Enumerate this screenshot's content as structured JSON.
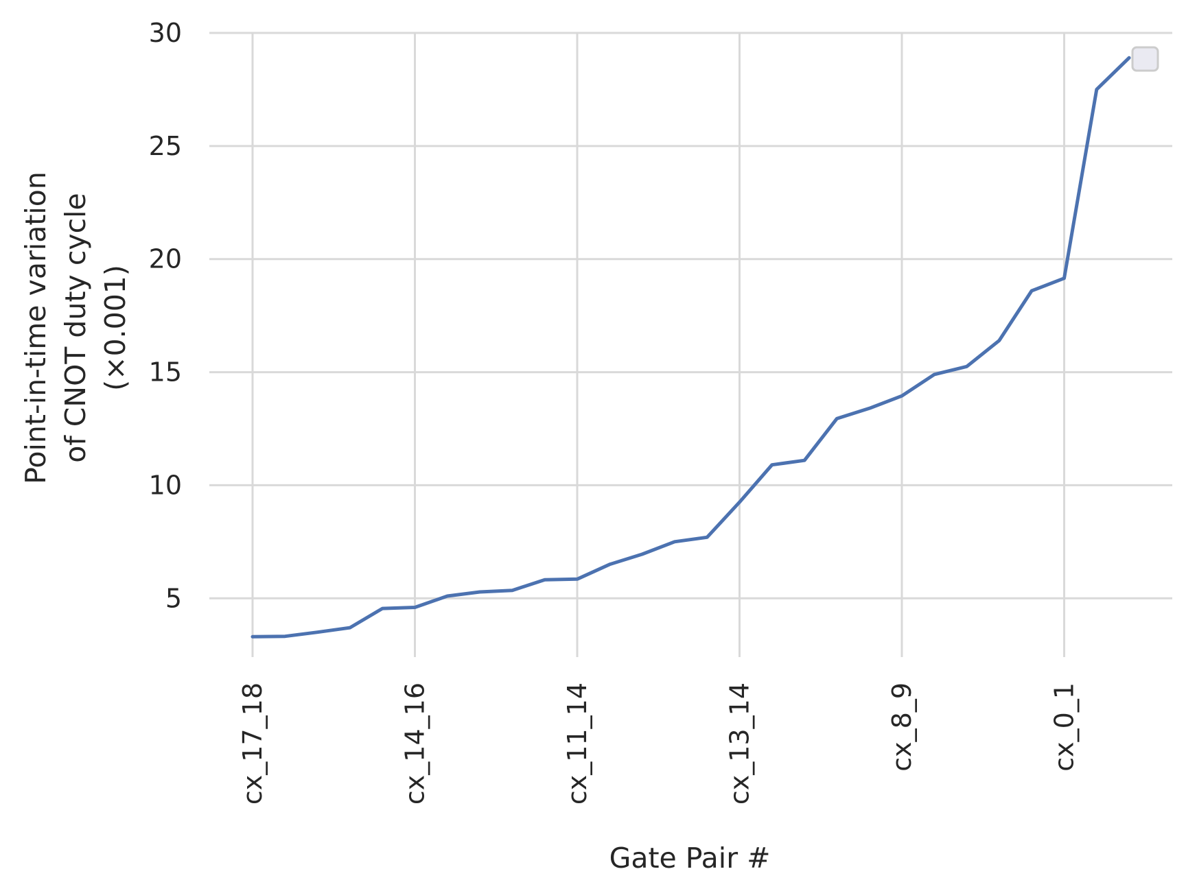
{
  "chart_data": {
    "type": "line",
    "xlabel": "Gate Pair #",
    "ylabel_lines": [
      "Point-in-time variation",
      "of CNOT duty cycle",
      "(×0.001)"
    ],
    "ylim": [
      2.4,
      30
    ],
    "y_ticks": [
      5,
      10,
      15,
      20,
      25,
      30
    ],
    "x_tick_labels": [
      "cx_17_18",
      "cx_14_16",
      "cx_11_14",
      "cx_13_14",
      "cx_8_9",
      "cx_0_1"
    ],
    "x_tick_positions": [
      0,
      5,
      10,
      15,
      20,
      25
    ],
    "grid": true,
    "legend": "top-right, empty",
    "colors": {
      "line": "#4c72b0",
      "grid": "#d9d9d9",
      "legend_fill": "#eaeaf2",
      "legend_edge": "#cccccc"
    },
    "series": [
      {
        "x": [
          0,
          1,
          2,
          3,
          4,
          5,
          6,
          7,
          8,
          9,
          10,
          11,
          12,
          13,
          14,
          15,
          16,
          17,
          18,
          19,
          20,
          21,
          22,
          23,
          24,
          25,
          26,
          27
        ],
        "values": [
          3.3,
          3.32,
          3.5,
          3.7,
          4.55,
          4.6,
          5.1,
          5.28,
          5.35,
          5.82,
          5.85,
          6.5,
          6.95,
          7.5,
          7.7,
          9.25,
          10.9,
          11.1,
          12.95,
          13.4,
          13.95,
          14.9,
          15.25,
          16.4,
          18.6,
          19.15,
          27.5,
          28.9
        ]
      }
    ]
  }
}
